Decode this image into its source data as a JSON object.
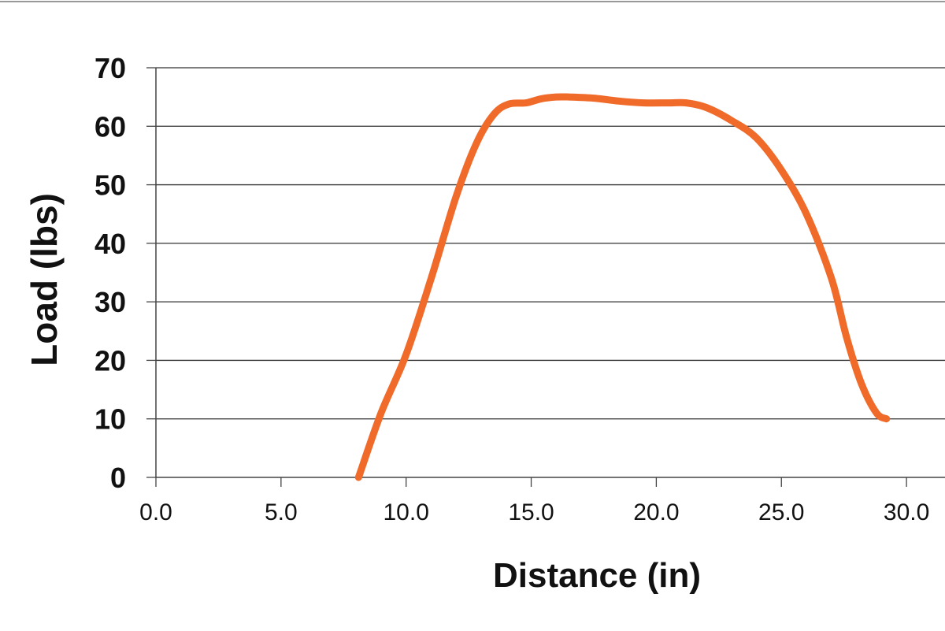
{
  "chart_data": {
    "type": "line",
    "title": "",
    "xlabel": "Distance (in)",
    "ylabel": "Load (lbs)",
    "xlim": [
      0,
      31.5
    ],
    "ylim": [
      0,
      70
    ],
    "x_ticks": [
      "0.0",
      "5.0",
      "10.0",
      "15.0",
      "20.0",
      "25.0",
      "30.0"
    ],
    "y_ticks": [
      "0",
      "10",
      "20",
      "30",
      "40",
      "50",
      "60",
      "70"
    ],
    "grid": "horizontal",
    "legend": "none",
    "line_color": "#F06A2A",
    "grid_color": "#333333",
    "axis_color": "#444444",
    "series": [
      {
        "x": [
          8.1,
          9.0,
          10.0,
          11.0,
          12.0,
          12.8,
          13.5,
          14.1,
          14.8,
          15.4,
          16.0,
          16.5,
          17.5,
          18.5,
          19.5,
          20.5,
          21.2,
          22.0,
          23.0,
          24.0,
          25.0,
          26.0,
          27.0,
          27.6,
          28.2,
          28.8,
          29.2
        ],
        "y": [
          0,
          11,
          21,
          34,
          48,
          57,
          62,
          63.8,
          64,
          64.7,
          65,
          65,
          64.8,
          64.3,
          64,
          64,
          64,
          63.2,
          61,
          58,
          52.5,
          45,
          34,
          24,
          16,
          11,
          10
        ]
      }
    ]
  }
}
